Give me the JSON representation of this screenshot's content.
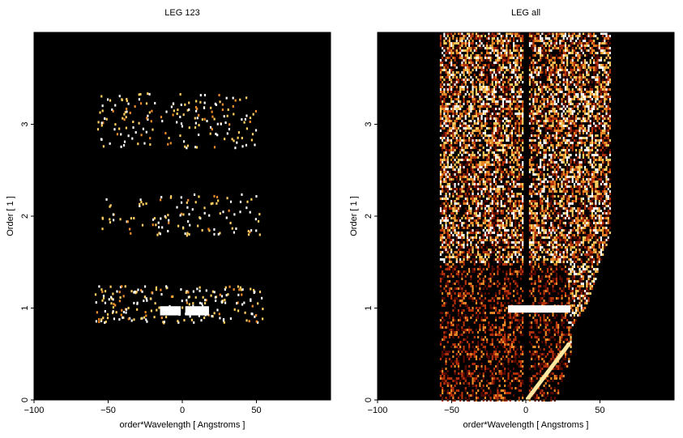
{
  "chart_data": [
    {
      "type": "heatmap",
      "title": "LEG 123",
      "xlabel": "order*Wavelength [ Angstroms ]",
      "ylabel": "Order [ 1 ]",
      "xlim": [
        -100,
        100
      ],
      "ylim": [
        0,
        4
      ],
      "x_ticks": [
        -100,
        -50,
        0,
        50
      ],
      "y_ticks": [
        0,
        1,
        2,
        3
      ],
      "background_color": "#000000",
      "colormap": [
        "#000000",
        "#5a0a00",
        "#b8320a",
        "#f08c28",
        "#ffd060",
        "#ffffff"
      ],
      "emission_regions": [
        {
          "x_range": [
            -60,
            55
          ],
          "order_range": [
            0.85,
            1.25
          ],
          "density": 0.12
        },
        {
          "x_range": [
            -55,
            52
          ],
          "order_range": [
            1.8,
            2.25
          ],
          "density": 0.06
        },
        {
          "x_range": [
            -58,
            50
          ],
          "order_range": [
            2.75,
            3.35
          ],
          "density": 0.07
        }
      ],
      "bright_features": [
        {
          "x_range": [
            -15,
            -1
          ],
          "order_range": [
            0.92,
            1.02
          ],
          "value": 1.0
        },
        {
          "x_range": [
            2,
            18
          ],
          "order_range": [
            0.92,
            1.02
          ],
          "value": 1.0
        }
      ]
    },
    {
      "type": "heatmap",
      "title": "LEG all",
      "xlabel": "order*Wavelength [ Angstroms ]",
      "ylabel": "Order [ 1 ]",
      "xlim": [
        -100,
        100
      ],
      "ylim": [
        0,
        4
      ],
      "x_ticks": [
        -100,
        -50,
        0,
        50
      ],
      "y_ticks": [
        0,
        1,
        2,
        3
      ],
      "background_color": "#000000",
      "colormap": [
        "#000000",
        "#5a0a00",
        "#b8320a",
        "#f08c28",
        "#ffd060",
        "#ffffff"
      ],
      "emission_regions": [
        {
          "x_range": [
            -58,
            57
          ],
          "order_range": [
            0,
            4
          ],
          "density": 0.75,
          "note": "dense band"
        }
      ],
      "lower_block": {
        "x_range": [
          -58,
          28
        ],
        "order_range": [
          0,
          1.5
        ]
      },
      "gap": {
        "x_range": [
          -2,
          2
        ],
        "order_range": [
          0,
          4
        ]
      },
      "bright_features": [
        {
          "x_range": [
            -12,
            30
          ],
          "order_range": [
            0.95,
            1.03
          ],
          "value": 1.0
        }
      ],
      "diagonal_feature": {
        "from": [
          0,
          0
        ],
        "to": [
          28,
          0.6
        ]
      }
    }
  ]
}
